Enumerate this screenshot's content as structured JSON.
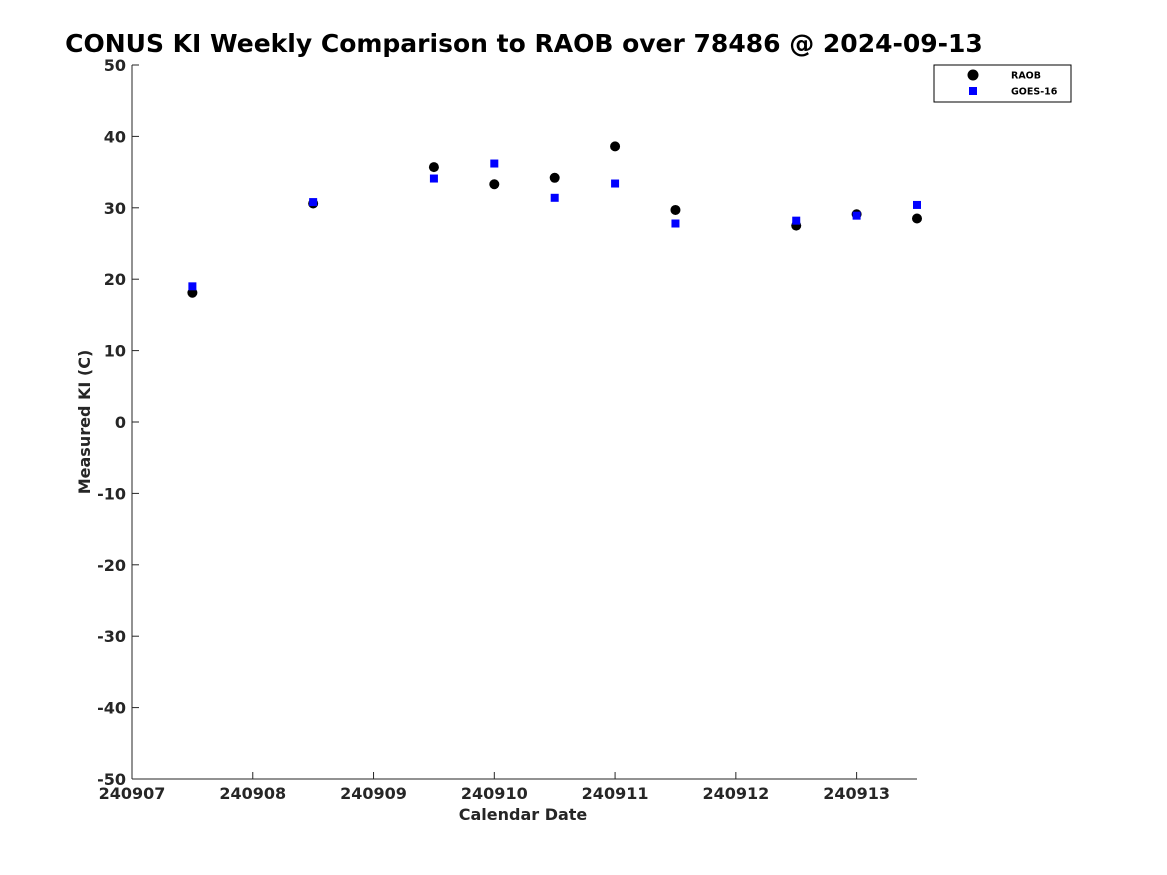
{
  "chart_data": {
    "type": "scatter",
    "title": "CONUS KI Weekly Comparison to RAOB over 78486 @ 2024-09-13",
    "xlabel": "Calendar Date",
    "ylabel": "Measured KI (C)",
    "xlim": [
      240907,
      240913.5
    ],
    "ylim": [
      -50,
      50
    ],
    "x_ticks": [
      240907,
      240908,
      240909,
      240910,
      240911,
      240912,
      240913
    ],
    "x_tick_labels": [
      "240907",
      "240908",
      "240909",
      "240910",
      "240911",
      "240912",
      "240913"
    ],
    "y_ticks": [
      50,
      40,
      30,
      20,
      10,
      0,
      -10,
      -20,
      -30,
      -40,
      -50
    ],
    "y_tick_labels": [
      "50",
      "40",
      "30",
      "20",
      "10",
      "0",
      "-10",
      "-20",
      "-30",
      "-40",
      "-50"
    ],
    "grid": false,
    "legend_position": "top-right",
    "series": [
      {
        "name": "RAOB",
        "marker": "circle",
        "color": "#000000",
        "points": [
          [
            240907.5,
            18.1
          ],
          [
            240908.5,
            30.6
          ],
          [
            240909.5,
            35.7
          ],
          [
            240910.0,
            33.3
          ],
          [
            240910.5,
            34.2
          ],
          [
            240911.0,
            38.6
          ],
          [
            240911.5,
            29.7
          ],
          [
            240912.5,
            27.5
          ],
          [
            240913.0,
            29.1
          ],
          [
            240913.5,
            28.5
          ]
        ]
      },
      {
        "name": "GOES-16",
        "marker": "square",
        "color": "#0000ff",
        "points": [
          [
            240907.5,
            19.0
          ],
          [
            240908.5,
            30.8
          ],
          [
            240909.5,
            34.1
          ],
          [
            240910.0,
            36.2
          ],
          [
            240910.5,
            31.4
          ],
          [
            240911.0,
            33.4
          ],
          [
            240911.5,
            27.8
          ],
          [
            240912.5,
            28.2
          ],
          [
            240913.0,
            28.9
          ],
          [
            240913.5,
            30.4
          ]
        ]
      }
    ]
  }
}
